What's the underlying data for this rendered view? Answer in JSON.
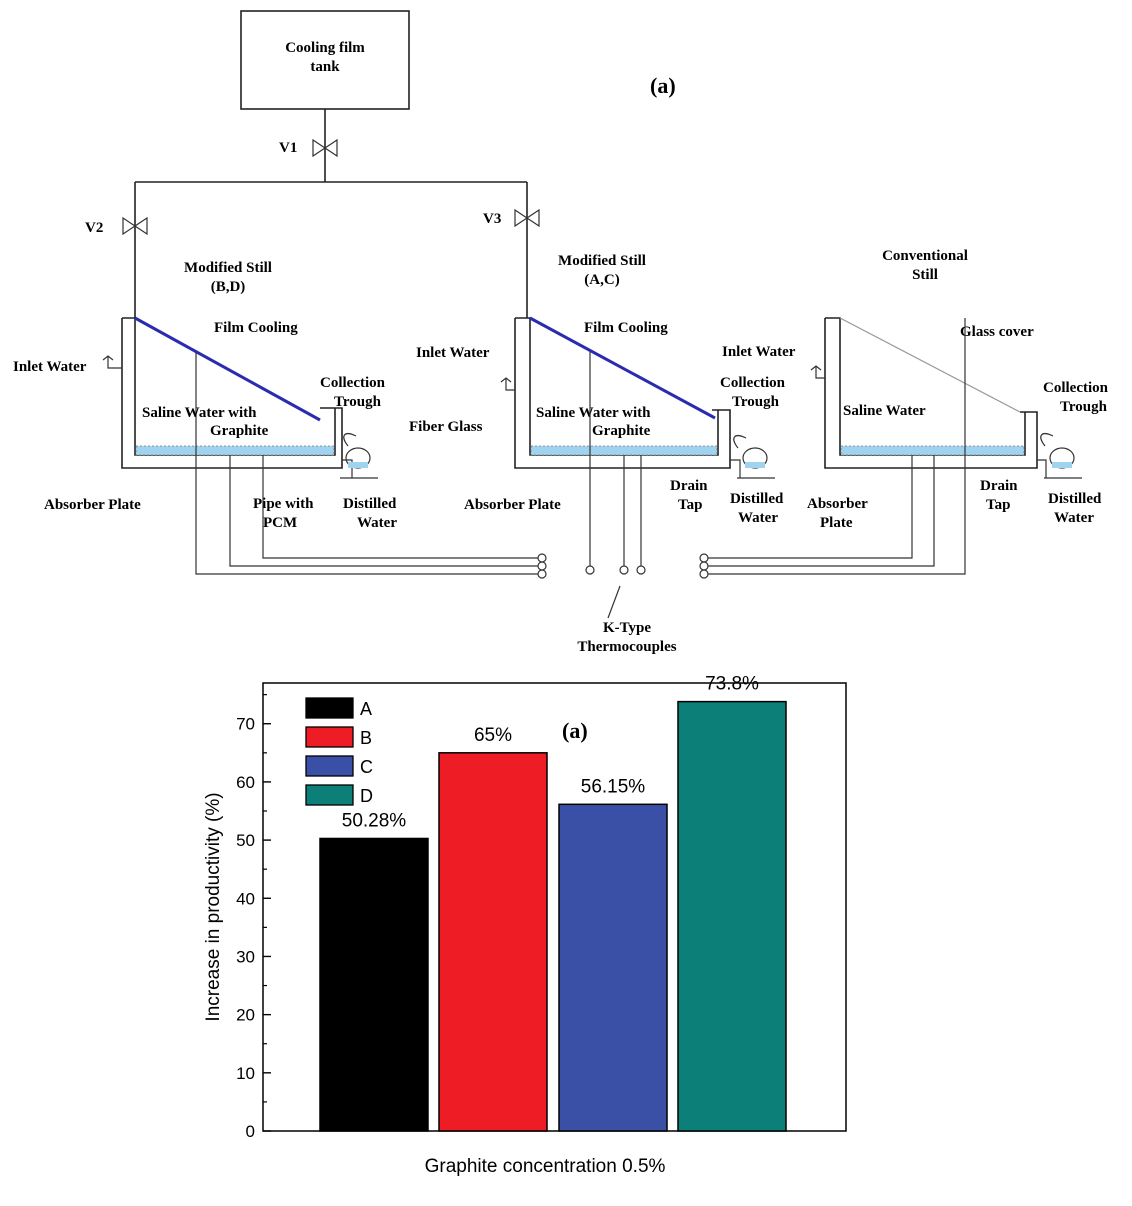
{
  "diagram": {
    "panel_label": "(a)",
    "tank": "Cooling film\ntank",
    "valves": [
      "V1",
      "V2",
      "V3"
    ],
    "stills": [
      {
        "title": "Modified Still\n(B,D)",
        "film": "Film Cooling",
        "inlet": "Inlet Water",
        "trough": "Collection\nTrough",
        "saline": "Saline Water with\nGraphite",
        "absorber": "Absorber Plate",
        "pipe": "Pipe with\nPCM",
        "distilled": "Distilled\nWater"
      },
      {
        "title": "Modified Still\n(A,C)",
        "film": "Film Cooling",
        "inlet": "Inlet Water",
        "trough": "Collection\nTrough",
        "saline": "Saline Water with\nGraphite",
        "fiber": "Fiber Glass",
        "absorber": "Absorber Plate",
        "drain": "Drain\nTap",
        "distilled": "Distilled\nWater"
      },
      {
        "title": "Conventional\nStill",
        "glass": "Glass cover",
        "inlet": "Inlet Water",
        "trough": "Collection\nTrough",
        "saline": "Saline Water",
        "absorber": "Absorber\nPlate",
        "drain": "Drain\nTap",
        "distilled": "Distilled\nWater"
      }
    ],
    "thermocouples": "K-Type\nThermocouples",
    "colors": {
      "film_cooling": "#2b2bb0",
      "water": "#9fd3ef"
    }
  },
  "chart_data": {
    "type": "bar",
    "panel_label": "(a)",
    "categories": [
      "A",
      "B",
      "C",
      "D"
    ],
    "values": [
      50.28,
      65,
      56.15,
      73.8
    ],
    "data_labels": [
      "50.28%",
      "65%",
      "56.15%",
      "73.8%"
    ],
    "colors": [
      "#000000",
      "#ee1c24",
      "#3a4fa6",
      "#0d7f79"
    ],
    "xlabel": "Graphite concentration 0.5%",
    "ylabel": "Increase in productivity (%)",
    "ylim": [
      0,
      77
    ],
    "yticks": [
      0,
      10,
      20,
      30,
      40,
      50,
      60,
      70
    ],
    "legend": [
      "A",
      "B",
      "C",
      "D"
    ],
    "legend_position": "top-left",
    "grid": false
  }
}
